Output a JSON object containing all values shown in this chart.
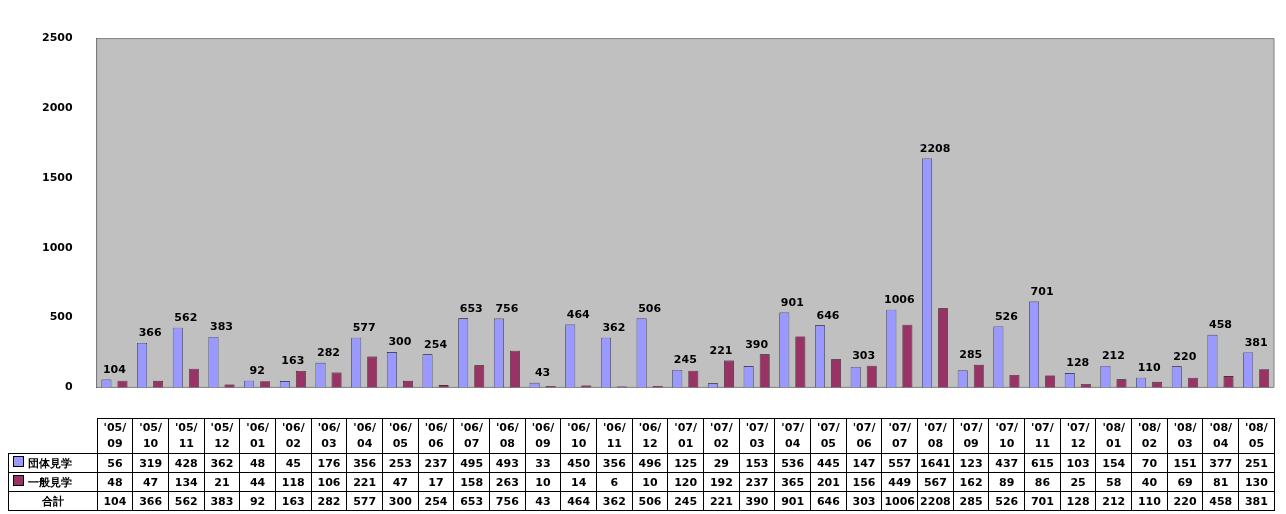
{
  "chart_data": {
    "type": "bar",
    "categories": [
      "'05/09",
      "'05/10",
      "'05/11",
      "'05/12",
      "'06/01",
      "'06/02",
      "'06/03",
      "'06/04",
      "'06/05",
      "'06/06",
      "'06/07",
      "'06/08",
      "'06/09",
      "'06/10",
      "'06/11",
      "'06/12",
      "'07/01",
      "'07/02",
      "'07/03",
      "'07/04",
      "'07/05",
      "'07/06",
      "'07/07",
      "'07/08",
      "'07/09",
      "'07/10",
      "'07/11",
      "'07/12",
      "'08/01",
      "'08/02",
      "'08/03",
      "'08/04",
      "'08/05"
    ],
    "series": [
      {
        "name": "団体見学",
        "color": "#9999ff",
        "values": [
          56,
          319,
          428,
          362,
          48,
          45,
          176,
          356,
          253,
          237,
          495,
          493,
          33,
          450,
          356,
          496,
          125,
          29,
          153,
          536,
          445,
          147,
          557,
          1641,
          123,
          437,
          615,
          103,
          154,
          70,
          151,
          377,
          251
        ]
      },
      {
        "name": "一般見学",
        "color": "#993366",
        "values": [
          48,
          47,
          134,
          21,
          44,
          118,
          106,
          221,
          47,
          17,
          158,
          263,
          10,
          14,
          6,
          10,
          120,
          192,
          237,
          365,
          201,
          156,
          449,
          567,
          162,
          89,
          86,
          25,
          58,
          40,
          69,
          81,
          130
        ]
      }
    ],
    "totals": [
      "104",
      "366",
      "562",
      "383",
      "92",
      "163",
      "282",
      "577",
      "300",
      "254",
      "653",
      "756",
      "43",
      "464",
      "362",
      "506",
      "245",
      "221",
      "390",
      "901",
      "646",
      "303",
      "1006",
      "2208",
      "285",
      "526",
      "701",
      "128",
      "212",
      "110",
      "220",
      "458",
      "381"
    ],
    "annotations": [
      "合計"
    ],
    "ylim": [
      0,
      2500
    ],
    "yticks": [
      0,
      500,
      1000,
      1500,
      2000,
      2500
    ],
    "legend": "bottom",
    "data_labels": true
  }
}
